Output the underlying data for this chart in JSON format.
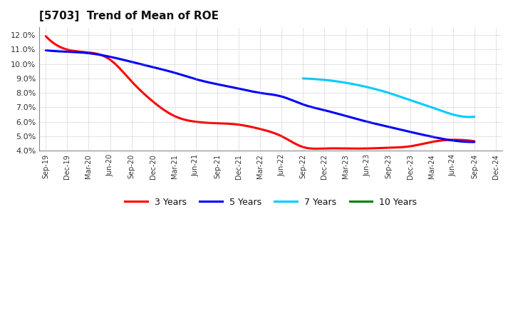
{
  "title": "[5703]  Trend of Mean of ROE",
  "background_color": "#ffffff",
  "plot_background_color": "#ffffff",
  "grid_color": "#999999",
  "series": {
    "3 Years": {
      "color": "#ff0000",
      "x_indices": [
        0,
        1,
        2,
        3,
        4,
        5,
        6,
        7,
        8,
        9,
        10,
        11,
        12,
        13,
        14,
        15,
        16,
        17,
        18,
        19,
        20
      ],
      "y": [
        0.1193,
        0.11,
        0.108,
        0.103,
        0.088,
        0.074,
        0.064,
        0.06,
        0.059,
        0.058,
        0.055,
        0.05,
        0.0425,
        0.0415,
        0.0415,
        0.0415,
        0.042,
        0.043,
        0.046,
        0.0475,
        0.0465
      ]
    },
    "5 Years": {
      "color": "#0000ff",
      "x_indices": [
        0,
        1,
        2,
        3,
        4,
        5,
        6,
        7,
        8,
        9,
        10,
        11,
        12,
        13,
        14,
        15,
        16,
        17,
        18,
        19,
        20
      ],
      "y": [
        0.1095,
        0.1085,
        0.1075,
        0.105,
        0.1015,
        0.0978,
        0.094,
        0.0895,
        0.086,
        0.083,
        0.08,
        0.0775,
        0.072,
        0.068,
        0.064,
        0.06,
        0.0565,
        0.053,
        0.0497,
        0.047,
        0.046
      ]
    },
    "7 Years": {
      "color": "#00ccff",
      "x_indices": [
        12,
        13,
        14,
        15,
        16,
        17,
        18,
        19,
        20
      ],
      "y": [
        0.09,
        0.089,
        0.087,
        0.084,
        0.08,
        0.075,
        0.07,
        0.065,
        0.0635
      ]
    },
    "10 Years": {
      "color": "#008000",
      "x_indices": [],
      "y": []
    }
  },
  "x_labels": [
    "Sep-19",
    "Dec-19",
    "Mar-20",
    "Jun-20",
    "Sep-20",
    "Dec-20",
    "Mar-21",
    "Jun-21",
    "Sep-21",
    "Dec-21",
    "Mar-22",
    "Jun-22",
    "Sep-22",
    "Dec-22",
    "Mar-23",
    "Jun-23",
    "Sep-23",
    "Dec-23",
    "Mar-24",
    "Jun-24",
    "Sep-24",
    "Dec-24"
  ],
  "ylim": [
    0.04,
    0.1255
  ],
  "yticks": [
    0.04,
    0.05,
    0.06,
    0.07,
    0.08,
    0.09,
    0.1,
    0.11,
    0.12
  ],
  "ytick_labels": [
    "4.0%",
    "5.0%",
    "6.0%",
    "7.0%",
    "8.0%",
    "9.0%",
    "10.0%",
    "11.0%",
    "12.0%"
  ],
  "legend_labels": [
    "3 Years",
    "5 Years",
    "7 Years",
    "10 Years"
  ],
  "legend_colors": [
    "#ff0000",
    "#0000ff",
    "#00ccff",
    "#008000"
  ]
}
